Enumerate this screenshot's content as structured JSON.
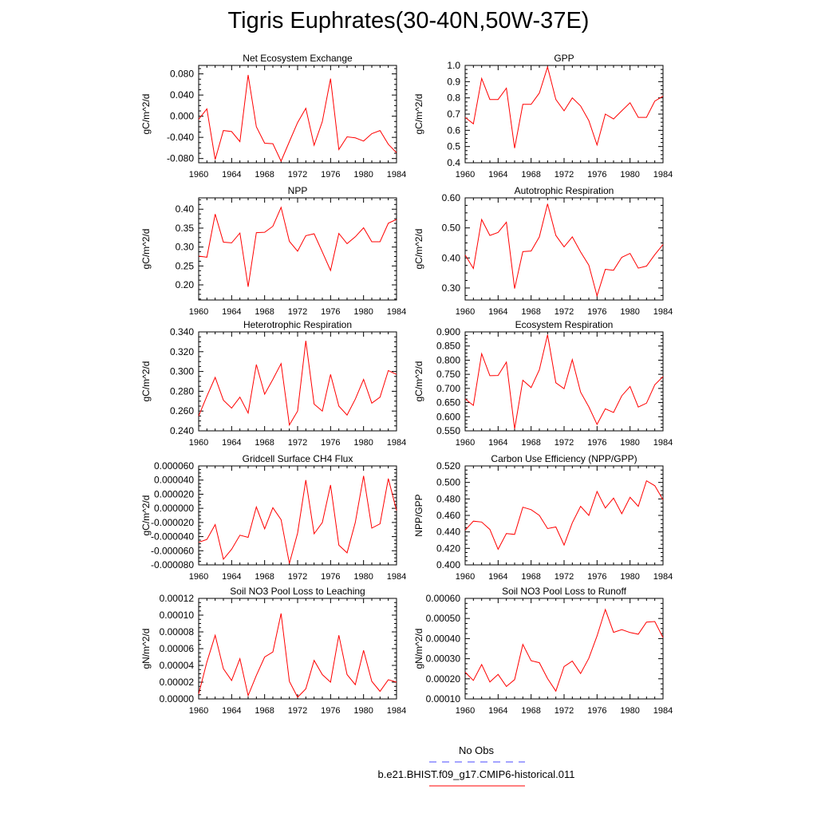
{
  "figure": {
    "title": "Tigris Euphrates(30-40N,50W-37E)",
    "colors": {
      "model": "#ff0000",
      "obs": "#4a4aff"
    },
    "legend": {
      "obs_label": "No Obs",
      "model_label": "b.e21.BHIST.f09_g17.CMIP6-historical.011"
    }
  },
  "chart_data": [
    {
      "type": "line",
      "title": "Net Ecosystem Exchange",
      "ylabel": "gC/m^2/d",
      "xlim": [
        1960,
        1984
      ],
      "ylim": [
        -0.088,
        0.096
      ],
      "xticks": [
        "1960",
        "1964",
        "1968",
        "1972",
        "1976",
        "1980",
        "1984"
      ],
      "yticks": [
        "0.080",
        "0.040",
        "0.000",
        "-0.040",
        "-0.080"
      ],
      "ytick_values": [
        0.08,
        0.04,
        0.0,
        -0.04,
        -0.08
      ],
      "x": [
        1960,
        1961,
        1962,
        1963,
        1964,
        1965,
        1966,
        1967,
        1968,
        1969,
        1970,
        1971,
        1972,
        1973,
        1974,
        1975,
        1976,
        1977,
        1978,
        1979,
        1980,
        1981,
        1982,
        1983,
        1984
      ],
      "series": [
        {
          "values": [
            -0.006,
            0.014,
            -0.082,
            -0.027,
            -0.029,
            -0.048,
            0.078,
            -0.02,
            -0.051,
            -0.052,
            -0.085,
            -0.048,
            -0.012,
            0.015,
            -0.055,
            -0.01,
            0.071,
            -0.063,
            -0.039,
            -0.041,
            -0.047,
            -0.033,
            -0.027,
            -0.053,
            -0.069
          ]
        }
      ]
    },
    {
      "type": "line",
      "title": "GPP",
      "ylabel": "gC/m^2/d",
      "xlim": [
        1960,
        1984
      ],
      "ylim": [
        0.4,
        1.0
      ],
      "xticks": [
        "1960",
        "1964",
        "1968",
        "1972",
        "1976",
        "1980",
        "1984"
      ],
      "yticks": [
        "1.0",
        "0.9",
        "0.8",
        "0.7",
        "0.6",
        "0.5",
        "0.4"
      ],
      "ytick_values": [
        1.0,
        0.9,
        0.8,
        0.7,
        0.6,
        0.5,
        0.4
      ],
      "x": [
        1960,
        1961,
        1962,
        1963,
        1964,
        1965,
        1966,
        1967,
        1968,
        1969,
        1970,
        1971,
        1972,
        1973,
        1974,
        1975,
        1976,
        1977,
        1978,
        1979,
        1980,
        1981,
        1982,
        1983,
        1984
      ],
      "series": [
        {
          "values": [
            0.68,
            0.64,
            0.92,
            0.79,
            0.79,
            0.86,
            0.49,
            0.76,
            0.76,
            0.83,
            0.99,
            0.79,
            0.72,
            0.8,
            0.75,
            0.66,
            0.51,
            0.7,
            0.67,
            0.72,
            0.77,
            0.68,
            0.68,
            0.78,
            0.81
          ]
        }
      ]
    },
    {
      "type": "line",
      "title": "NPP",
      "ylabel": "gC/m^2/d",
      "xlim": [
        1960,
        1984
      ],
      "ylim": [
        0.16,
        0.43
      ],
      "xticks": [
        "1960",
        "1964",
        "1968",
        "1972",
        "1976",
        "1980",
        "1984"
      ],
      "yticks": [
        "0.40",
        "0.35",
        "0.30",
        "0.25",
        "0.20"
      ],
      "ytick_values": [
        0.4,
        0.35,
        0.3,
        0.25,
        0.2
      ],
      "x": [
        1960,
        1961,
        1962,
        1963,
        1964,
        1965,
        1966,
        1967,
        1968,
        1969,
        1970,
        1971,
        1972,
        1973,
        1974,
        1975,
        1976,
        1977,
        1978,
        1979,
        1980,
        1981,
        1982,
        1983,
        1984
      ],
      "series": [
        {
          "values": [
            0.276,
            0.273,
            0.387,
            0.313,
            0.311,
            0.337,
            0.195,
            0.338,
            0.339,
            0.355,
            0.405,
            0.315,
            0.289,
            0.33,
            0.335,
            0.287,
            0.238,
            0.336,
            0.309,
            0.327,
            0.351,
            0.314,
            0.314,
            0.363,
            0.373
          ]
        }
      ]
    },
    {
      "type": "line",
      "title": "Autotrophic Respiration",
      "ylabel": "gC/m^2/d",
      "xlim": [
        1960,
        1984
      ],
      "ylim": [
        0.26,
        0.6
      ],
      "xticks": [
        "1960",
        "1964",
        "1968",
        "1972",
        "1976",
        "1980",
        "1984"
      ],
      "yticks": [
        "0.60",
        "0.50",
        "0.40",
        "0.30"
      ],
      "ytick_values": [
        0.6,
        0.5,
        0.4,
        0.3
      ],
      "x": [
        1960,
        1961,
        1962,
        1963,
        1964,
        1965,
        1966,
        1967,
        1968,
        1969,
        1970,
        1971,
        1972,
        1973,
        1974,
        1975,
        1976,
        1977,
        1978,
        1979,
        1980,
        1981,
        1982,
        1983,
        1984
      ],
      "series": [
        {
          "values": [
            0.41,
            0.365,
            0.528,
            0.475,
            0.485,
            0.519,
            0.298,
            0.421,
            0.423,
            0.47,
            0.58,
            0.475,
            0.437,
            0.47,
            0.42,
            0.376,
            0.274,
            0.362,
            0.359,
            0.402,
            0.415,
            0.366,
            0.373,
            0.411,
            0.445
          ]
        }
      ]
    },
    {
      "type": "line",
      "title": "Heterotrophic Respiration",
      "ylabel": "gC/m^2/d",
      "xlim": [
        1960,
        1984
      ],
      "ylim": [
        0.24,
        0.34
      ],
      "xticks": [
        "1960",
        "1964",
        "1968",
        "1972",
        "1976",
        "1980",
        "1984"
      ],
      "yticks": [
        "0.340",
        "0.320",
        "0.300",
        "0.280",
        "0.260",
        "0.240"
      ],
      "ytick_values": [
        0.34,
        0.32,
        0.3,
        0.28,
        0.26,
        0.24
      ],
      "x": [
        1960,
        1961,
        1962,
        1963,
        1964,
        1965,
        1966,
        1967,
        1968,
        1969,
        1970,
        1971,
        1972,
        1973,
        1974,
        1975,
        1976,
        1977,
        1978,
        1979,
        1980,
        1981,
        1982,
        1983,
        1984
      ],
      "series": [
        {
          "values": [
            0.255,
            0.275,
            0.294,
            0.271,
            0.263,
            0.274,
            0.258,
            0.307,
            0.277,
            0.292,
            0.308,
            0.246,
            0.26,
            0.331,
            0.267,
            0.26,
            0.297,
            0.265,
            0.256,
            0.272,
            0.292,
            0.268,
            0.274,
            0.301,
            0.297
          ]
        }
      ]
    },
    {
      "type": "line",
      "title": "Ecosystem Respiration",
      "ylabel": "gC/m^2/d",
      "xlim": [
        1960,
        1984
      ],
      "ylim": [
        0.55,
        0.9
      ],
      "xticks": [
        "1960",
        "1964",
        "1968",
        "1972",
        "1976",
        "1980",
        "1984"
      ],
      "yticks": [
        "0.900",
        "0.850",
        "0.800",
        "0.750",
        "0.700",
        "0.650",
        "0.600",
        "0.550"
      ],
      "ytick_values": [
        0.9,
        0.85,
        0.8,
        0.75,
        0.7,
        0.65,
        0.6,
        0.55
      ],
      "x": [
        1960,
        1961,
        1962,
        1963,
        1964,
        1965,
        1966,
        1967,
        1968,
        1969,
        1970,
        1971,
        1972,
        1973,
        1974,
        1975,
        1976,
        1977,
        1978,
        1979,
        1980,
        1981,
        1982,
        1983,
        1984
      ],
      "series": [
        {
          "values": [
            0.663,
            0.64,
            0.823,
            0.745,
            0.746,
            0.793,
            0.557,
            0.729,
            0.703,
            0.766,
            0.89,
            0.72,
            0.699,
            0.802,
            0.687,
            0.635,
            0.573,
            0.628,
            0.615,
            0.674,
            0.707,
            0.634,
            0.648,
            0.713,
            0.742
          ]
        }
      ]
    },
    {
      "type": "line",
      "title": "Gridcell Surface CH4 Flux",
      "ylabel": "gC/m^2/d",
      "xlim": [
        1960,
        1984
      ],
      "ylim": [
        -8e-05,
        6e-05
      ],
      "xticks": [
        "1960",
        "1964",
        "1968",
        "1972",
        "1976",
        "1980",
        "1984"
      ],
      "yticks": [
        "0.000060",
        "0.000040",
        "0.000020",
        "0.000000",
        "-0.000020",
        "-0.000040",
        "-0.000060",
        "-0.000080"
      ],
      "ytick_values": [
        6e-05,
        4e-05,
        2e-05,
        0.0,
        -2e-05,
        -4e-05,
        -6e-05,
        -8e-05
      ],
      "x": [
        1960,
        1961,
        1962,
        1963,
        1964,
        1965,
        1966,
        1967,
        1968,
        1969,
        1970,
        1971,
        1972,
        1973,
        1974,
        1975,
        1976,
        1977,
        1978,
        1979,
        1980,
        1981,
        1982,
        1983,
        1984
      ],
      "series": [
        {
          "values": [
            -4.8e-05,
            -4.4e-05,
            -2.3e-05,
            -7.2e-05,
            -5.8e-05,
            -3.8e-05,
            -4.1e-05,
            2e-06,
            -2.9e-05,
            1e-06,
            -1.6e-05,
            -7.8e-05,
            -3.5e-05,
            4e-05,
            -3.6e-05,
            -2e-05,
            3.3e-05,
            -5.2e-05,
            -6.3e-05,
            -2e-05,
            4.6e-05,
            -2.8e-05,
            -2.2e-05,
            4.2e-05,
            -3e-06
          ]
        }
      ]
    },
    {
      "type": "line",
      "title": "Carbon Use Efficiency (NPP/GPP)",
      "ylabel": "NPP/GPP",
      "xlim": [
        1960,
        1984
      ],
      "ylim": [
        0.4,
        0.52
      ],
      "xticks": [
        "1960",
        "1964",
        "1968",
        "1972",
        "1976",
        "1980",
        "1984"
      ],
      "yticks": [
        "0.520",
        "0.500",
        "0.480",
        "0.460",
        "0.440",
        "0.420",
        "0.400"
      ],
      "ytick_values": [
        0.52,
        0.5,
        0.48,
        0.46,
        0.44,
        0.42,
        0.4
      ],
      "x": [
        1960,
        1961,
        1962,
        1963,
        1964,
        1965,
        1966,
        1967,
        1968,
        1969,
        1970,
        1971,
        1972,
        1973,
        1974,
        1975,
        1976,
        1977,
        1978,
        1979,
        1980,
        1981,
        1982,
        1983,
        1984
      ],
      "series": [
        {
          "values": [
            0.442,
            0.453,
            0.452,
            0.443,
            0.419,
            0.438,
            0.437,
            0.47,
            0.467,
            0.46,
            0.444,
            0.446,
            0.424,
            0.451,
            0.471,
            0.46,
            0.489,
            0.469,
            0.481,
            0.462,
            0.482,
            0.471,
            0.502,
            0.496,
            0.479
          ]
        }
      ]
    },
    {
      "type": "line",
      "title": "Soil NO3 Pool Loss to Leaching",
      "ylabel": "gN/m^2/d",
      "xlim": [
        1960,
        1984
      ],
      "ylim": [
        0.0,
        0.00012
      ],
      "xticks": [
        "1960",
        "1964",
        "1968",
        "1972",
        "1976",
        "1980",
        "1984"
      ],
      "yticks": [
        "0.00012",
        "0.00010",
        "0.00008",
        "0.00006",
        "0.00004",
        "0.00002",
        "0.00000"
      ],
      "ytick_values": [
        0.00012,
        0.0001,
        8e-05,
        6e-05,
        4e-05,
        2e-05,
        0.0
      ],
      "x": [
        1960,
        1961,
        1962,
        1963,
        1964,
        1965,
        1966,
        1967,
        1968,
        1969,
        1970,
        1971,
        1972,
        1973,
        1974,
        1975,
        1976,
        1977,
        1978,
        1979,
        1980,
        1981,
        1982,
        1983,
        1984
      ],
      "series": [
        {
          "values": [
            6e-06,
            4.4e-05,
            7.6e-05,
            3.6e-05,
            2.2e-05,
            4.8e-05,
            4e-06,
            2.8e-05,
            5e-05,
            5.6e-05,
            0.000102,
            2.1e-05,
            2e-06,
            1.2e-05,
            4.6e-05,
            2.9e-05,
            2e-05,
            7.6e-05,
            2.9e-05,
            1.7e-05,
            5.8e-05,
            2.1e-05,
            9e-06,
            2.3e-05,
            2e-05
          ]
        }
      ]
    },
    {
      "type": "line",
      "title": "Soil NO3 Pool Loss to Runoff",
      "ylabel": "gN/m^2/d",
      "xlim": [
        1960,
        1984
      ],
      "ylim": [
        0.0001,
        0.0006
      ],
      "xticks": [
        "1960",
        "1964",
        "1968",
        "1972",
        "1976",
        "1980",
        "1984"
      ],
      "yticks": [
        "0.00060",
        "0.00050",
        "0.00040",
        "0.00030",
        "0.00020",
        "0.00010"
      ],
      "ytick_values": [
        0.0006,
        0.0005,
        0.0004,
        0.0003,
        0.0002,
        0.0001
      ],
      "x": [
        1960,
        1961,
        1962,
        1963,
        1964,
        1965,
        1966,
        1967,
        1968,
        1969,
        1970,
        1971,
        1972,
        1973,
        1974,
        1975,
        1976,
        1977,
        1978,
        1979,
        1980,
        1981,
        1982,
        1983,
        1984
      ],
      "series": [
        {
          "values": [
            0.000233,
            0.000192,
            0.000271,
            0.000184,
            0.000222,
            0.000162,
            0.000196,
            0.000371,
            0.00029,
            0.00028,
            0.000201,
            0.000139,
            0.000261,
            0.000288,
            0.000226,
            0.000302,
            0.000413,
            0.000545,
            0.000431,
            0.000445,
            0.00043,
            0.000422,
            0.000482,
            0.000485,
            0.000405
          ]
        }
      ]
    }
  ]
}
